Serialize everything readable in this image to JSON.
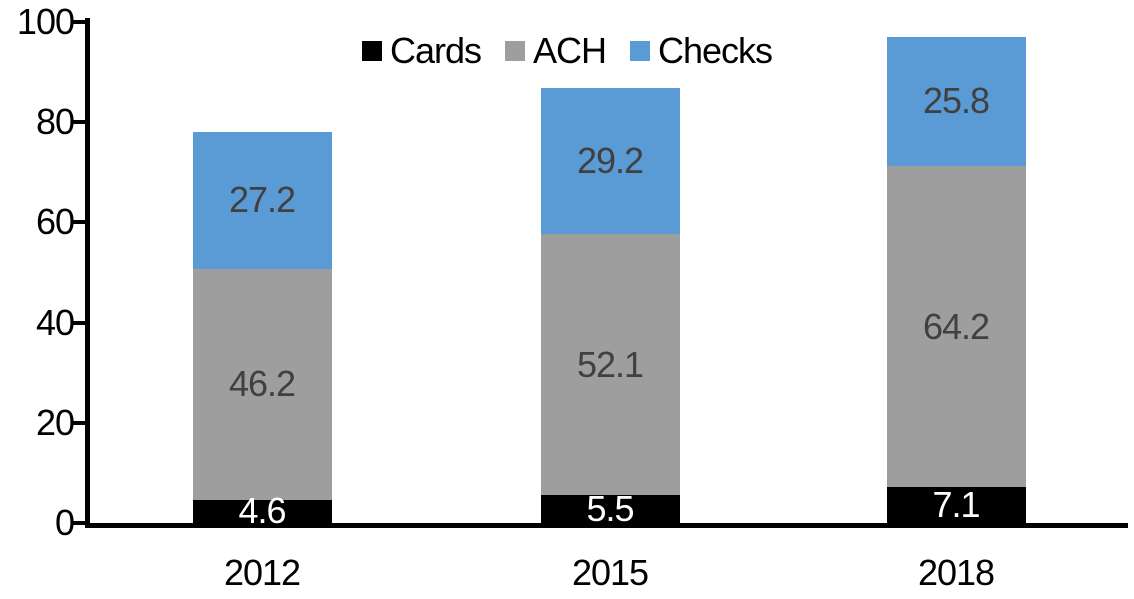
{
  "chart_data": {
    "type": "bar",
    "stacked": true,
    "title": "",
    "categories": [
      "2012",
      "2015",
      "2018"
    ],
    "series": [
      {
        "name": "Cards",
        "color": "#000000",
        "label_color": "#ffffff",
        "values": [
          4.6,
          5.5,
          7.1
        ]
      },
      {
        "name": "ACH",
        "color": "#9e9e9e",
        "label_color": "#404040",
        "values": [
          46.2,
          52.1,
          64.2
        ]
      },
      {
        "name": "Checks",
        "color": "#5b9bd5",
        "label_color": "#404040",
        "values": [
          27.2,
          29.2,
          25.8
        ]
      }
    ],
    "totals": [
      78.0,
      86.8,
      97.1
    ],
    "ylim": [
      0,
      100
    ],
    "yticks": [
      0,
      20,
      40,
      60,
      80,
      100
    ],
    "grid": false,
    "legend_position": "top-center",
    "data_labels": true,
    "axis_color": "#000000",
    "text_color": "#000000"
  }
}
